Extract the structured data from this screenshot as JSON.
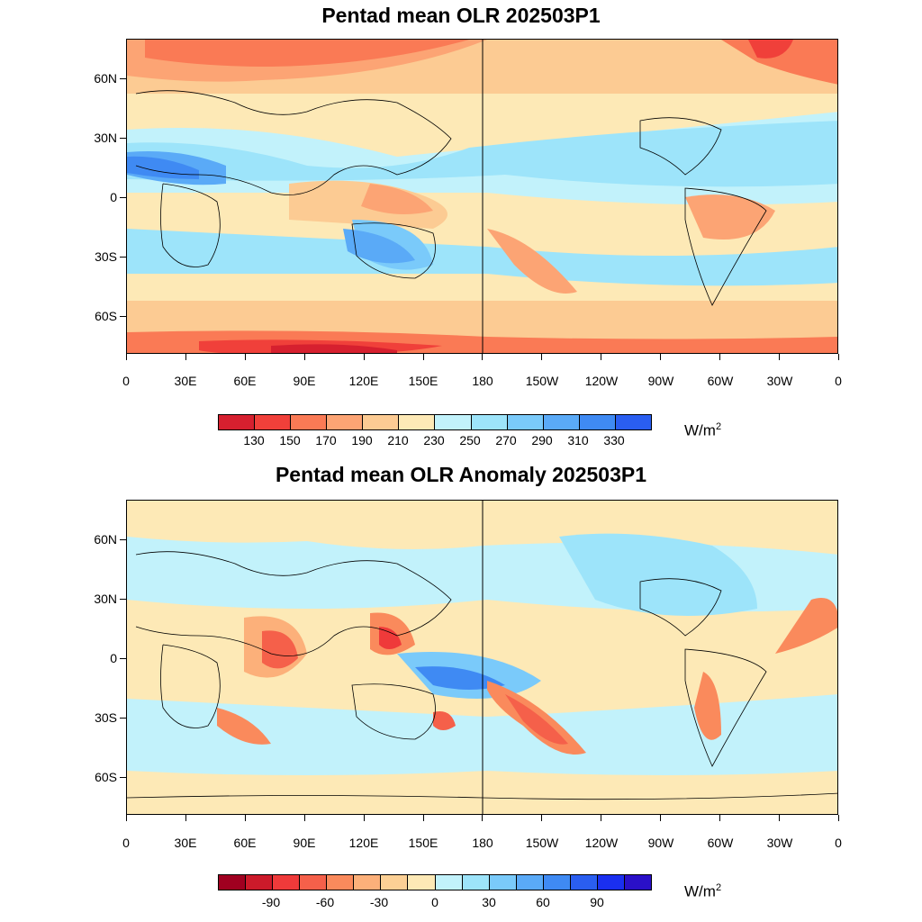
{
  "panels": [
    {
      "title": "Pentad mean OLR 202503P1",
      "y_labels": [
        "60N",
        "30N",
        "0",
        "30S",
        "60S"
      ],
      "x_labels": [
        "0",
        "30E",
        "60E",
        "90E",
        "120E",
        "150E",
        "180",
        "150W",
        "120W",
        "90W",
        "60W",
        "30W",
        "0"
      ],
      "colorbar": {
        "colors": [
          "#d6202f",
          "#f0403a",
          "#fa7a55",
          "#fca474",
          "#fccb93",
          "#fde9b6",
          "#c2f2fb",
          "#9de4fa",
          "#7acafa",
          "#5aaaf7",
          "#3f8af3",
          "#2a5ef0"
        ],
        "labels": [
          "130",
          "150",
          "170",
          "190",
          "210",
          "230",
          "250",
          "270",
          "290",
          "310",
          "330"
        ]
      },
      "units": "W/m",
      "units_sup": "2"
    },
    {
      "title": "Pentad mean OLR Anomaly 202503P1",
      "y_labels": [
        "60N",
        "30N",
        "0",
        "30S",
        "60S"
      ],
      "x_labels": [
        "0",
        "30E",
        "60E",
        "90E",
        "120E",
        "150E",
        "180",
        "150W",
        "120W",
        "90W",
        "60W",
        "30W",
        "0"
      ],
      "colorbar": {
        "colors": [
          "#a00020",
          "#cc1a2a",
          "#ef3a3a",
          "#f5604a",
          "#fa8a5c",
          "#fcb07a",
          "#fcd095",
          "#fde9b6",
          "#c2f2fb",
          "#9de4fa",
          "#7acafa",
          "#5aaaf7",
          "#3f8af3",
          "#2a5ef0",
          "#1a2ff0",
          "#2a10c8"
        ],
        "labels": [
          "-90",
          "-60",
          "-30",
          "0",
          "30",
          "60",
          "90"
        ]
      },
      "units": "W/m",
      "units_sup": "2"
    }
  ]
}
